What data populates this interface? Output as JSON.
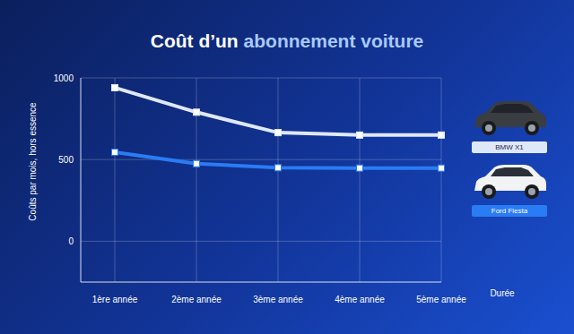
{
  "chart_data": {
    "type": "line",
    "title": "Coût d’un abonnement voiture",
    "xlabel": "Durée",
    "ylabel": "Coûts par mois, hors essence",
    "categories": [
      "1ère année",
      "2ème année",
      "3ème année",
      "4ème année",
      "5ème année"
    ],
    "series": [
      {
        "name": "BMW X1",
        "color": "#dfe8f8",
        "values": [
          940,
          790,
          665,
          650,
          650
        ]
      },
      {
        "name": "Ford Fiesta",
        "color": "#2a7cf4",
        "values": [
          545,
          475,
          450,
          448,
          448
        ]
      }
    ],
    "ylim": [
      -250,
      1000
    ],
    "yticks": [
      0,
      500,
      1000
    ],
    "grid": true,
    "marker": "square",
    "legend": "right"
  }
}
